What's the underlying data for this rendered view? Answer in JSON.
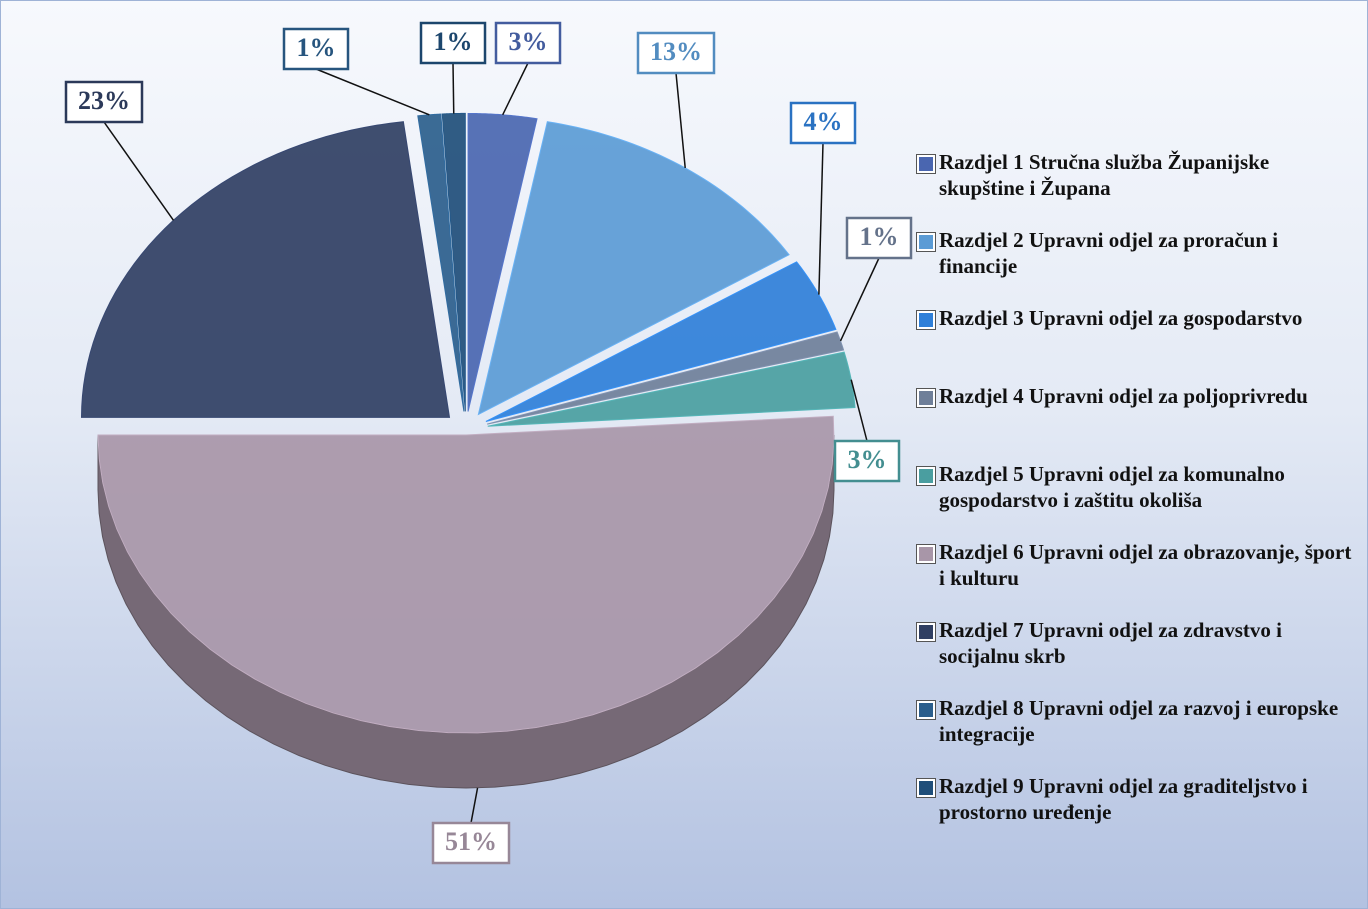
{
  "chart_data": {
    "type": "pie",
    "categories": [
      "Razdjel 1 Stručna služba Županijske skupštine i Župana",
      "Razdjel 2 Upravni odjel za proračun i financije",
      "Razdjel 3 Upravni odjel za gospodarstvo",
      "Razdjel 4 Upravni odjel za poljoprivredu",
      "Razdjel 5 Upravni odjel za komunalno gospodarstvo i zaštitu okoliša",
      "Razdjel 6 Upravni odjel za obrazovanje, šport i kulturu",
      "Razdjel 7 Upravni odjel za zdravstvo i socijalnu skrb",
      "Razdjel 8 Upravni odjel za razvoj i europske integracije",
      "Razdjel 9 Upravni odjel za graditeljstvo i prostorno uređenje"
    ],
    "values": [
      3,
      13,
      4,
      1,
      3,
      51,
      23,
      1,
      1
    ],
    "value_labels": [
      "3%",
      "13%",
      "4%",
      "1%",
      "3%",
      "51%",
      "23%",
      "1%",
      "1%"
    ],
    "colors": [
      "#4a66b0",
      "#5b9bd5",
      "#2f7fd8",
      "#6f7f99",
      "#4a9ea0",
      "#a896a8",
      "#303f63",
      "#2b5e8c",
      "#1f4e79"
    ],
    "legend": "right"
  }
}
